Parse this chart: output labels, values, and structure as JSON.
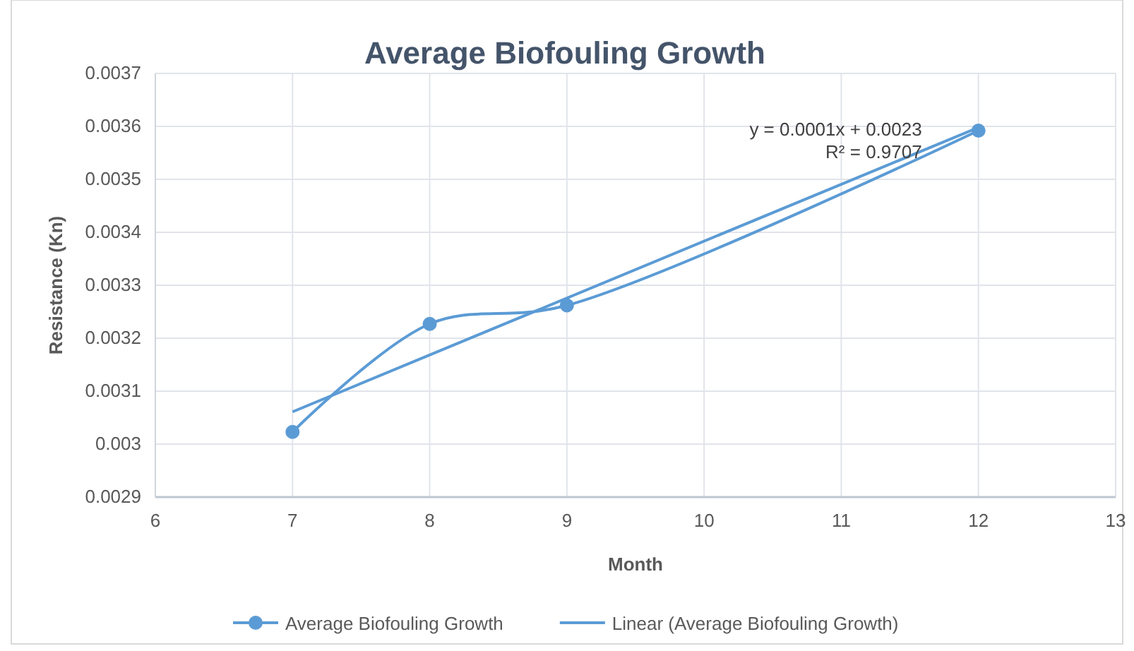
{
  "chart_data": {
    "type": "line",
    "title": "Average Biofouling Growth",
    "xlabel": "Month",
    "ylabel": "Resistance (Kn)",
    "series": [
      {
        "name": "Average Biofouling Growth",
        "color": "#5b9bd5",
        "x": [
          7,
          8,
          9,
          12
        ],
        "values": [
          0.003023,
          0.003227,
          0.003262,
          0.003592
        ],
        "marker": "circle"
      },
      {
        "name": "Linear (Average Biofouling Growth)",
        "color": "#5b9bd5",
        "x": [
          7,
          12
        ],
        "values": [
          0.003061,
          0.003598
        ],
        "marker": "none"
      }
    ],
    "annotations": [
      "y = 0.0001x + 0.0023",
      "R² = 0.9707"
    ],
    "xlim": [
      6,
      13
    ],
    "xticks": [
      6,
      7,
      8,
      9,
      10,
      11,
      12,
      13
    ],
    "ylim": [
      0.0029,
      0.0037
    ],
    "yticks": [
      0.0029,
      0.003,
      0.0031,
      0.0032,
      0.0033,
      0.0034,
      0.0035,
      0.0036,
      0.0037
    ],
    "grid": true,
    "legend": "bottom"
  }
}
